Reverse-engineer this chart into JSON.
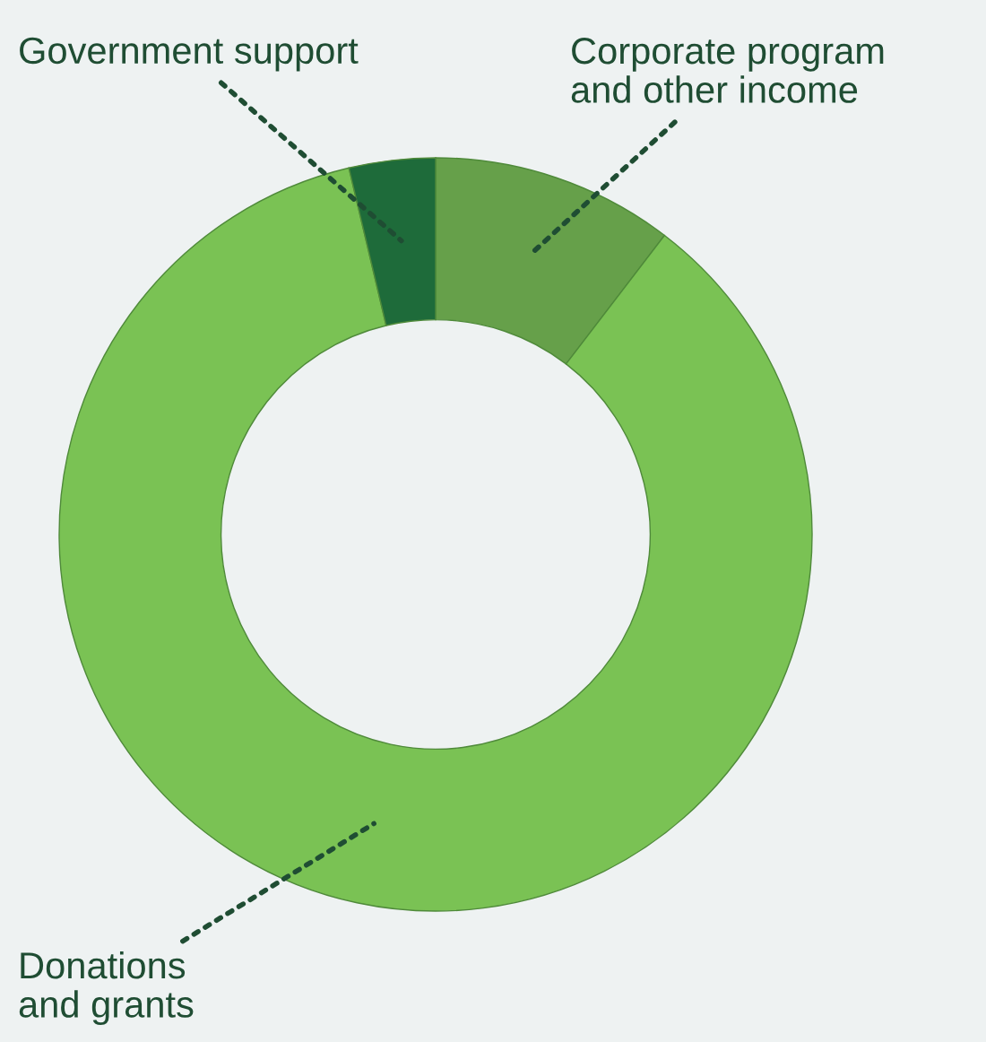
{
  "chart_data": {
    "type": "donut",
    "categories": [
      "Corporate program\nand other income",
      "Donations\nand grants",
      "Government support"
    ],
    "values": [
      10.4,
      85.9,
      3.7
    ],
    "colors": [
      "#66a04a",
      "#7ac254",
      "#1e6b3a"
    ],
    "legend": false
  }
}
